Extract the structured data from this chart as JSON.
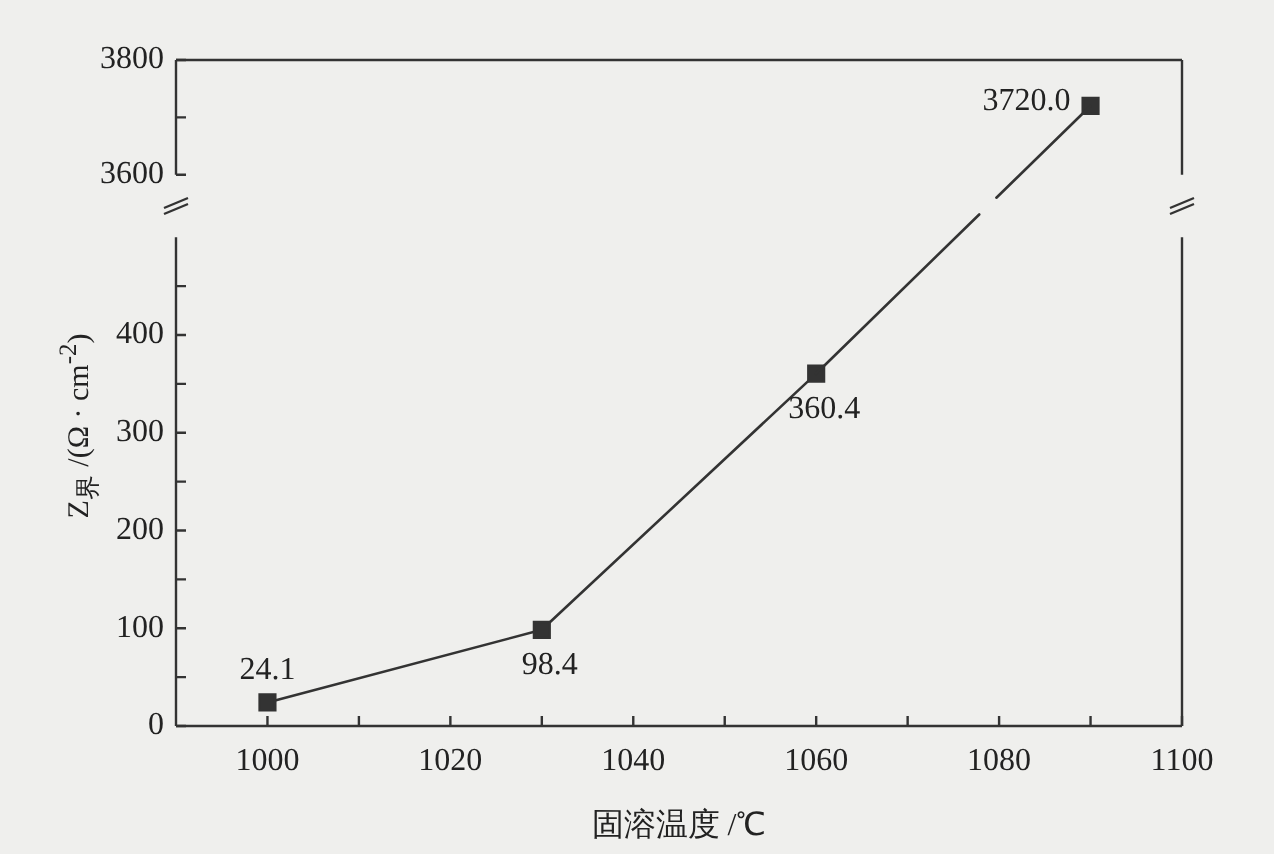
{
  "chart_data": [
    {
      "type": "line",
      "x": [
        1090
      ],
      "series": [
        {
          "color": "#333333",
          "values": [
            3720
          ],
          "value_labels": [
            "3720.0"
          ]
        }
      ],
      "xlim": [
        990,
        1100
      ],
      "ylim": [
        3600,
        3800
      ],
      "yticks": [
        3600,
        {
          "value": 3700,
          "label": null
        },
        3800
      ],
      "tick_labels": "y",
      "grid": false,
      "legend": false,
      "marker": "square",
      "line_style": "solid"
    },
    {
      "type": "line",
      "x": [
        1000,
        1030,
        1060
      ],
      "series": [
        {
          "color": "#333333",
          "values": [
            24.1,
            98.4,
            360.4
          ],
          "value_labels": [
            "24.1",
            "98.4",
            "360.4"
          ]
        }
      ],
      "xlim": [
        990,
        1100
      ],
      "xticks": [
        1000,
        {
          "value": 1010,
          "label": null
        },
        1020,
        {
          "value": 1030,
          "label": null
        },
        1040,
        {
          "value": 1050,
          "label": null
        },
        1060,
        {
          "value": 1070,
          "label": null
        },
        1080,
        {
          "value": 1090,
          "label": null
        },
        1100
      ],
      "ylim": [
        0,
        500
      ],
      "yticks": [
        0,
        {
          "value": 50,
          "label": null
        },
        100,
        {
          "value": 150,
          "label": null
        },
        200,
        {
          "value": 250,
          "label": null
        },
        300,
        {
          "value": 350,
          "label": null
        },
        400,
        {
          "value": 450,
          "label": null
        }
      ],
      "xlabel": "固溶温度 /℃",
      "ylabel": "Z$_{界}$ /(Ω · cm$^{-2}$)",
      "grid": false,
      "legend": false,
      "marker": "square",
      "line_style": "solid"
    }
  ]
}
